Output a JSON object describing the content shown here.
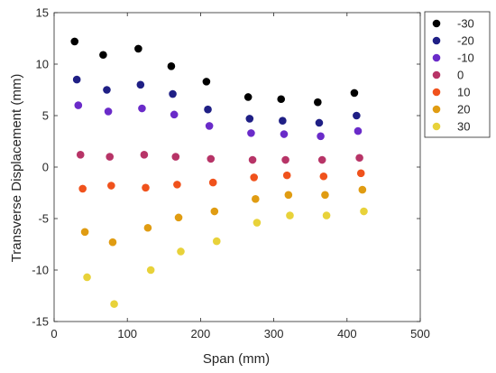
{
  "chart_data": {
    "type": "scatter",
    "xlabel": "Span (mm)",
    "ylabel": "Transverse Displacement (mm)",
    "xlim": [
      0,
      500
    ],
    "ylim": [
      -15,
      15
    ],
    "xticks": [
      "0",
      "100",
      "200",
      "300",
      "400",
      "500"
    ],
    "yticks": [
      "-15",
      "-10",
      "-5",
      "0",
      "5",
      "10",
      "15"
    ],
    "grid": false,
    "legend_position": "top-right",
    "series": [
      {
        "name": "-30",
        "color": "#000000",
        "x": [
          28,
          67,
          115,
          160,
          208,
          265,
          310,
          360,
          410
        ],
        "y": [
          12.2,
          10.9,
          11.5,
          9.8,
          8.3,
          6.8,
          6.6,
          6.3,
          7.2
        ]
      },
      {
        "name": "-20",
        "color": "#1f1f85",
        "x": [
          31,
          72,
          118,
          162,
          210,
          267,
          312,
          362,
          413
        ],
        "y": [
          8.5,
          7.5,
          8.0,
          7.1,
          5.6,
          4.7,
          4.5,
          4.3,
          5.0
        ]
      },
      {
        "name": "-10",
        "color": "#6a2bc9",
        "x": [
          33,
          74,
          120,
          164,
          212,
          269,
          314,
          364,
          415
        ],
        "y": [
          6.0,
          5.4,
          5.7,
          5.1,
          4.0,
          3.3,
          3.2,
          3.0,
          3.5
        ]
      },
      {
        "name": "0",
        "color": "#b73467",
        "x": [
          36,
          76,
          123,
          166,
          214,
          271,
          316,
          366,
          417
        ],
        "y": [
          1.2,
          1.0,
          1.2,
          1.0,
          0.8,
          0.7,
          0.7,
          0.7,
          0.9
        ]
      },
      {
        "name": "10",
        "color": "#f0521c",
        "x": [
          39,
          78,
          125,
          168,
          217,
          273,
          318,
          368,
          419
        ],
        "y": [
          -2.1,
          -1.8,
          -2.0,
          -1.7,
          -1.5,
          -1.0,
          -0.8,
          -0.9,
          -0.6
        ]
      },
      {
        "name": "20",
        "color": "#e09c12",
        "x": [
          42,
          80,
          128,
          170,
          219,
          275,
          320,
          370,
          421
        ],
        "y": [
          -6.3,
          -7.3,
          -5.9,
          -4.9,
          -4.3,
          -3.1,
          -2.7,
          -2.7,
          -2.2
        ]
      },
      {
        "name": "30",
        "color": "#e8d23a",
        "x": [
          45,
          82,
          132,
          173,
          222,
          277,
          322,
          372,
          423
        ],
        "y": [
          -10.7,
          -13.3,
          -10.0,
          -8.2,
          -7.2,
          -5.4,
          -4.7,
          -4.7,
          -4.3
        ]
      }
    ]
  }
}
